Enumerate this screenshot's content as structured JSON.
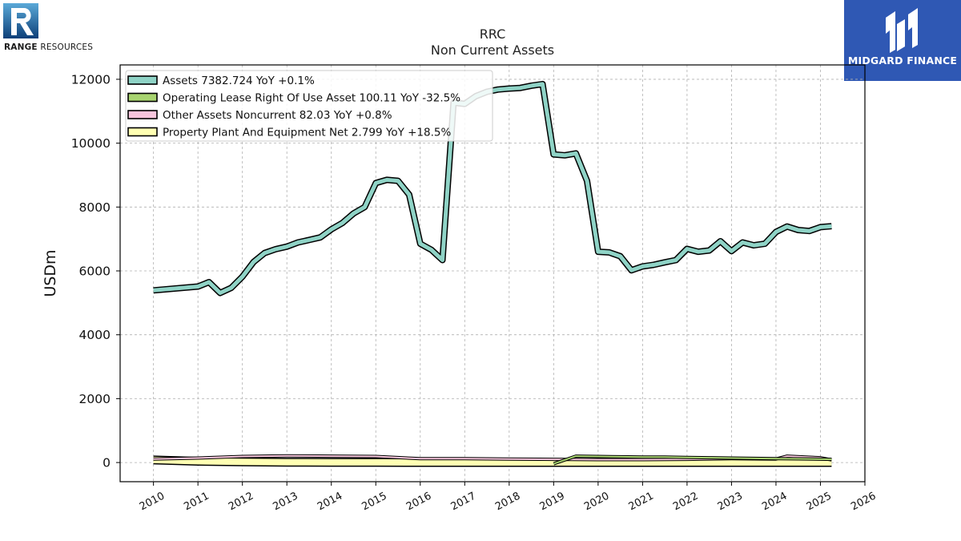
{
  "branding": {
    "company_bold": "RANGE",
    "company_rest": " RESOURCES",
    "partner": "MIDGARD FINANCE"
  },
  "chart_data": {
    "type": "line",
    "title": "RRC",
    "subtitle": "Non Current  Assets",
    "xlabel": "",
    "ylabel": "USDm",
    "xlim": [
      2009.25,
      2026.0
    ],
    "ylim": [
      -600,
      12450
    ],
    "x_ticks": [
      "2010",
      "2011",
      "2012",
      "2013",
      "2014",
      "2015",
      "2016",
      "2017",
      "2018",
      "2019",
      "2020",
      "2021",
      "2022",
      "2023",
      "2024",
      "2025",
      "2026"
    ],
    "y_ticks": [
      0,
      2000,
      4000,
      6000,
      8000,
      10000,
      12000
    ],
    "grid": true,
    "legend_position": "top-left",
    "series": [
      {
        "name": "Assets",
        "legend_label": "Assets  7382.724 YoY +0.1%",
        "color": "#8fd3c6",
        "x": [
          2010.0,
          2011.0,
          2011.25,
          2011.5,
          2011.75,
          2012.0,
          2012.25,
          2012.5,
          2012.75,
          2013.0,
          2013.25,
          2013.5,
          2013.75,
          2014.0,
          2014.25,
          2014.5,
          2014.75,
          2015.0,
          2015.25,
          2015.5,
          2015.75,
          2016.0,
          2016.25,
          2016.5,
          2016.75,
          2017.0,
          2017.25,
          2017.5,
          2017.75,
          2018.0,
          2018.25,
          2018.5,
          2018.75,
          2019.0,
          2019.25,
          2019.5,
          2019.75,
          2020.0,
          2020.25,
          2020.5,
          2020.75,
          2021.0,
          2021.25,
          2021.5,
          2021.75,
          2022.0,
          2022.25,
          2022.5,
          2022.75,
          2023.0,
          2023.25,
          2023.5,
          2023.75,
          2024.0,
          2024.25,
          2024.5,
          2024.75,
          2025.0,
          2025.25
        ],
        "values": [
          5390,
          5510,
          5650,
          5310,
          5470,
          5820,
          6280,
          6560,
          6680,
          6760,
          6890,
          6970,
          7050,
          7300,
          7500,
          7800,
          8000,
          8750,
          8850,
          8820,
          8390,
          6850,
          6660,
          6340,
          11270,
          11230,
          11470,
          11610,
          11680,
          11710,
          11730,
          11800,
          11850,
          9650,
          9620,
          9680,
          8820,
          6600,
          6580,
          6460,
          6020,
          6140,
          6190,
          6270,
          6340,
          6690,
          6600,
          6640,
          6930,
          6620,
          6890,
          6800,
          6850,
          7220,
          7390,
          7280,
          7250,
          7370,
          7400
        ]
      },
      {
        "name": "Operating Lease Right Of Use Asset",
        "legend_label": "Operating Lease Right Of Use Asset  100.11 YoY -32.5%",
        "color": "#a8d470",
        "x": [
          2019.0,
          2019.5,
          2020.0,
          2020.5,
          2021.0,
          2021.5,
          2022.0,
          2022.5,
          2023.0,
          2023.5,
          2024.0,
          2024.5,
          2025.0,
          2025.25
        ],
        "values": [
          -40,
          200,
          190,
          180,
          170,
          170,
          160,
          150,
          140,
          130,
          120,
          115,
          105,
          100
        ]
      },
      {
        "name": "Other Assets Noncurrent",
        "legend_label": "Other Assets Noncurrent  82.03 YoY +0.8%",
        "color": "#f7c5dc",
        "x": [
          2010.0,
          2011.0,
          2012.0,
          2013.0,
          2014.0,
          2015.0,
          2016.0,
          2017.0,
          2018.0,
          2019.0,
          2020.0,
          2021.0,
          2022.0,
          2023.0,
          2024.0,
          2024.25,
          2025.0,
          2025.25
        ],
        "values": [
          110,
          140,
          190,
          210,
          200,
          190,
          120,
          120,
          110,
          100,
          90,
          90,
          100,
          120,
          110,
          200,
          150,
          82
        ]
      },
      {
        "name": "Property Plant And Equipment Net",
        "legend_label": "Property Plant And Equipment Net  2.799 YoY +18.5%",
        "color": "#ffffb3",
        "x": [
          2010.0,
          2011.0,
          2012.0,
          2013.0,
          2014.0,
          2015.0,
          2016.0,
          2017.0,
          2018.0,
          2019.0,
          2020.0,
          2021.0,
          2022.0,
          2023.0,
          2024.0,
          2025.0,
          2025.25
        ],
        "values": [
          80,
          40,
          20,
          10,
          5,
          5,
          3,
          3,
          3,
          3,
          2,
          2,
          2,
          2,
          2.4,
          2.7,
          2.8
        ]
      }
    ]
  }
}
